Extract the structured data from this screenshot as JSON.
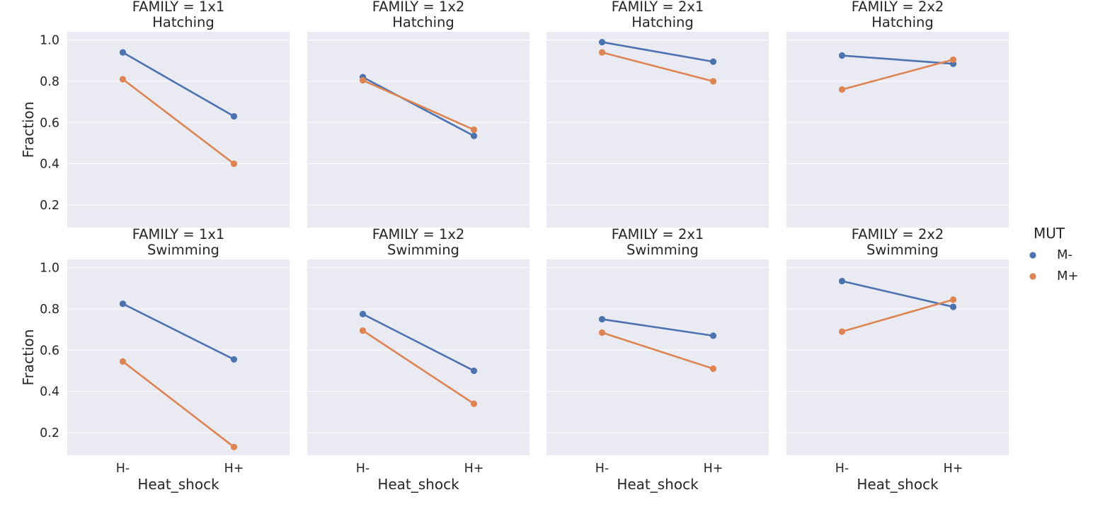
{
  "chart_data": {
    "type": "line",
    "facet_rows": [
      "Hatching",
      "Swimming"
    ],
    "facet_cols": [
      "1x1",
      "1x2",
      "2x1",
      "2x2"
    ],
    "row_title_template": "FAMILY = {col}\n{row}",
    "categories": [
      "H-",
      "H+"
    ],
    "xlabel": "Heat_shock",
    "ylabel": "Fraction",
    "ylim": [
      0.09,
      1.04
    ],
    "yticks": [
      0.2,
      0.4,
      0.6,
      0.8,
      1.0
    ],
    "ytick_labels": [
      "0.2",
      "0.4",
      "0.6",
      "0.8",
      "1.0"
    ],
    "grid": true,
    "legend": {
      "title": "MUT",
      "placement": "right",
      "entries": [
        {
          "name": "M-",
          "color": "#4c72b0"
        },
        {
          "name": "M+",
          "color": "#dd8452"
        }
      ]
    },
    "panels": [
      {
        "row": "Hatching",
        "col": "1x1",
        "title_line1": "FAMILY = 1x1",
        "title_line2": "Hatching",
        "series": [
          {
            "name": "M-",
            "values": [
              0.94,
              0.63
            ]
          },
          {
            "name": "M+",
            "values": [
              0.81,
              0.4
            ]
          }
        ]
      },
      {
        "row": "Hatching",
        "col": "1x2",
        "title_line1": "FAMILY = 1x2",
        "title_line2": "Hatching",
        "series": [
          {
            "name": "M-",
            "values": [
              0.82,
              0.535
            ]
          },
          {
            "name": "M+",
            "values": [
              0.805,
              0.565
            ]
          }
        ]
      },
      {
        "row": "Hatching",
        "col": "2x1",
        "title_line1": "FAMILY = 2x1",
        "title_line2": "Hatching",
        "series": [
          {
            "name": "M-",
            "values": [
              0.99,
              0.895
            ]
          },
          {
            "name": "M+",
            "values": [
              0.94,
              0.8
            ]
          }
        ]
      },
      {
        "row": "Hatching",
        "col": "2x2",
        "title_line1": "FAMILY = 2x2",
        "title_line2": "Hatching",
        "series": [
          {
            "name": "M-",
            "values": [
              0.925,
              0.885
            ]
          },
          {
            "name": "M+",
            "values": [
              0.76,
              0.905
            ]
          }
        ]
      },
      {
        "row": "Swimming",
        "col": "1x1",
        "title_line1": "FAMILY = 1x1",
        "title_line2": "Swimming",
        "series": [
          {
            "name": "M-",
            "values": [
              0.825,
              0.555
            ]
          },
          {
            "name": "M+",
            "values": [
              0.545,
              0.13
            ]
          }
        ]
      },
      {
        "row": "Swimming",
        "col": "1x2",
        "title_line1": "FAMILY = 1x2",
        "title_line2": "Swimming",
        "series": [
          {
            "name": "M-",
            "values": [
              0.775,
              0.5
            ]
          },
          {
            "name": "M+",
            "values": [
              0.695,
              0.34
            ]
          }
        ]
      },
      {
        "row": "Swimming",
        "col": "2x1",
        "title_line1": "FAMILY = 2x1",
        "title_line2": "Swimming",
        "series": [
          {
            "name": "M-",
            "values": [
              0.75,
              0.67
            ]
          },
          {
            "name": "M+",
            "values": [
              0.685,
              0.51
            ]
          }
        ]
      },
      {
        "row": "Swimming",
        "col": "2x2",
        "title_line1": "FAMILY = 2x2",
        "title_line2": "Swimming",
        "series": [
          {
            "name": "M-",
            "values": [
              0.935,
              0.81
            ]
          },
          {
            "name": "M+",
            "values": [
              0.69,
              0.845
            ]
          }
        ]
      }
    ]
  }
}
